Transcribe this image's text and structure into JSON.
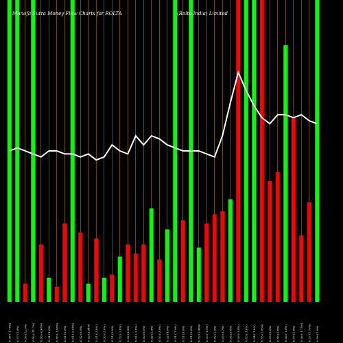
{
  "chart_data": {
    "type": "bar",
    "title_left": "Munafa Sutra  Money Flow  Charts for ROLTA",
    "title_right": "(Rolta  India)  Limited",
    "ylim": [
      0,
      100
    ],
    "grid": "vertical",
    "colors": {
      "up": "#00ff00",
      "down": "#ff0000",
      "line": "#ffffff",
      "grid": "#b8860b",
      "background": "#000000"
    },
    "categories": [
      "0.56 (-1.75%)",
      "0.57 (1.8%)",
      "0.56 (12.0%)",
      "0.50 (-11.7%)",
      "0.50 (-0.00%)",
      "0.51 (2.0%)",
      "0.50 (-1.96%)",
      "0.51 (0.0%)",
      "0.51 (-2.94%)",
      "0.52 (0.0%)",
      "0.53 (2.94%)",
      "0.51 (-3.0%)",
      "0.50 (-3.0%)",
      "0.51 (2.0%)",
      "0.52 (-2.0%)",
      "0.52 (3.9%)",
      "0.51 (-2.0%)",
      "0.50 (0.0%)",
      "0.52 (1.9%)",
      "0.50 (-3.9%)",
      "0.52 (4.0%)",
      "0.51 (-1.9%)",
      "0.51 (0.0%)",
      "0.51 (0.0%)",
      "0.52 (1.96%)",
      "0.53 (-1.9%)",
      "0.52 (1.9%)",
      "0.55 (5.7%)",
      "0.58 (5.4%)",
      "0.56 (-3.4%)",
      "0.55 (-1.8%)",
      "0.54 (-1.8%)",
      "0.55 (1.85%)",
      "0.55 (0.0%)",
      "0.56 (1.8%)",
      "0.56 (-1.8%)",
      "0.57 (1.8%)",
      "0.56 (-1.75%)",
      "0.57 (1.78%)",
      "0.56 (1.8%)"
    ],
    "series": [
      {
        "role": "money-flow-bars",
        "values": [
          100,
          100,
          6,
          100,
          19,
          8,
          5,
          26,
          100,
          23,
          6,
          21,
          8,
          9,
          15,
          19,
          16,
          19,
          31,
          14,
          24,
          100,
          27,
          100,
          18,
          26,
          29,
          30,
          34,
          100,
          100,
          100,
          100,
          40,
          43,
          85,
          61,
          22,
          33,
          100
        ],
        "directions": [
          "up",
          "up",
          "down",
          "up",
          "down",
          "up",
          "down",
          "down",
          "up",
          "down",
          "up",
          "down",
          "up",
          "down",
          "up",
          "down",
          "down",
          "down",
          "up",
          "down",
          "up",
          "up",
          "down",
          "up",
          "up",
          "down",
          "down",
          "down",
          "up",
          "down",
          "up",
          "up",
          "down",
          "down",
          "down",
          "up",
          "down",
          "down",
          "down",
          "up"
        ]
      },
      {
        "role": "price-line",
        "values": [
          50,
          51,
          50,
          49,
          48,
          50,
          50,
          49,
          49,
          48,
          49,
          47,
          48,
          52,
          50,
          49,
          55,
          52,
          55,
          54,
          52,
          51,
          50,
          50,
          50,
          49,
          48,
          55,
          66,
          76,
          70,
          65,
          61,
          59,
          62,
          62,
          61,
          62,
          60,
          59
        ]
      }
    ]
  }
}
